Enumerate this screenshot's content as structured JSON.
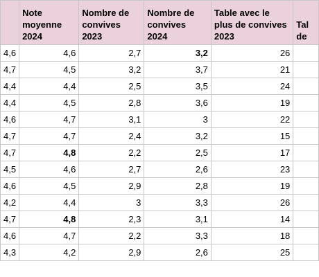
{
  "headers": [
    "",
    "Note moyenne 2024",
    "Nombre de convives 2023",
    "Nombre de convives 2024",
    "Table avec le plus de convives 2023",
    "Tal de"
  ],
  "rows": [
    {
      "cells": [
        "4,6",
        "4,6",
        "2,7",
        "3,2",
        "26",
        ""
      ],
      "bold": [
        false,
        false,
        false,
        true,
        false,
        false
      ]
    },
    {
      "cells": [
        "4,7",
        "4,5",
        "3,2",
        "3,7",
        "21",
        ""
      ],
      "bold": [
        false,
        false,
        false,
        false,
        false,
        false
      ]
    },
    {
      "cells": [
        "4,4",
        "4,4",
        "2,5",
        "3,5",
        "24",
        ""
      ],
      "bold": [
        false,
        false,
        false,
        false,
        false,
        false
      ]
    },
    {
      "cells": [
        "4,4",
        "4,5",
        "2,8",
        "3,6",
        "19",
        ""
      ],
      "bold": [
        false,
        false,
        false,
        false,
        false,
        false
      ]
    },
    {
      "cells": [
        "4,6",
        "4,7",
        "3,1",
        "3",
        "22",
        ""
      ],
      "bold": [
        false,
        false,
        false,
        false,
        false,
        false
      ]
    },
    {
      "cells": [
        "4,7",
        "4,7",
        "2,4",
        "3,2",
        "15",
        ""
      ],
      "bold": [
        false,
        false,
        false,
        false,
        false,
        false
      ]
    },
    {
      "cells": [
        "4,7",
        "4,8",
        "2,2",
        "2,5",
        "17",
        ""
      ],
      "bold": [
        false,
        true,
        false,
        false,
        false,
        false
      ]
    },
    {
      "cells": [
        "4,5",
        "4,6",
        "2,7",
        "2,6",
        "23",
        ""
      ],
      "bold": [
        false,
        false,
        false,
        false,
        false,
        false
      ]
    },
    {
      "cells": [
        "4,6",
        "4,5",
        "2,9",
        "2,8",
        "19",
        ""
      ],
      "bold": [
        false,
        false,
        false,
        false,
        false,
        false
      ]
    },
    {
      "cells": [
        "4,2",
        "4,4",
        "3",
        "3,3",
        "26",
        ""
      ],
      "bold": [
        false,
        false,
        false,
        false,
        false,
        false
      ]
    },
    {
      "cells": [
        "4,7",
        "4,8",
        "2,3",
        "3,1",
        "14",
        ""
      ],
      "bold": [
        false,
        true,
        false,
        false,
        false,
        false
      ]
    },
    {
      "cells": [
        "4,6",
        "4,7",
        "2,2",
        "3,3",
        "18",
        ""
      ],
      "bold": [
        false,
        false,
        false,
        false,
        false,
        false
      ]
    },
    {
      "cells": [
        "4,3",
        "4,2",
        "2,9",
        "2,6",
        "25",
        ""
      ],
      "bold": [
        false,
        false,
        false,
        false,
        false,
        false
      ]
    }
  ],
  "colors": {
    "header_bg": "#ead1dc",
    "grid": "#c6c6c6"
  }
}
